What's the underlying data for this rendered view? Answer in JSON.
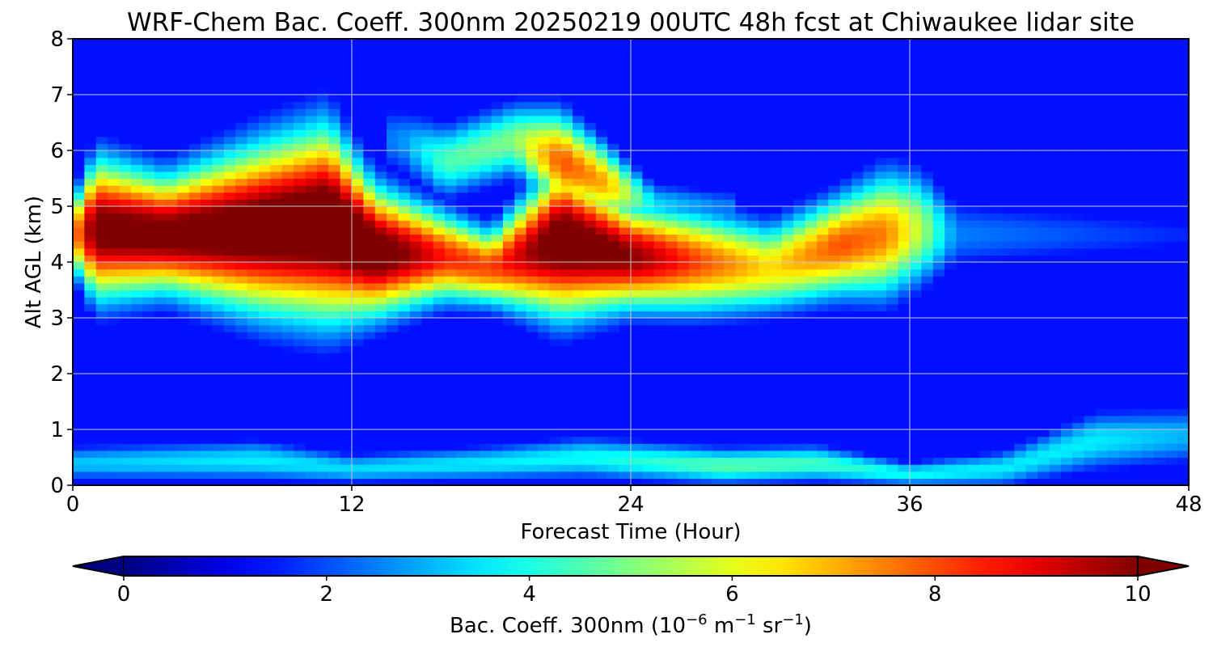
{
  "chart_data": {
    "type": "heatmap",
    "title": "WRF-Chem Bac. Coeff. 300nm  20250219 00UTC 48h fcst at Chiwaukee lidar site",
    "xlabel": "Forecast Time (Hour)",
    "ylabel": "Alt AGL (km)",
    "xlim": [
      0,
      48
    ],
    "ylim": [
      0,
      8
    ],
    "x_ticks": [
      "0",
      "12",
      "24",
      "36",
      "48"
    ],
    "y_ticks": [
      "0",
      "1",
      "2",
      "3",
      "4",
      "5",
      "6",
      "7",
      "8"
    ],
    "grid": true,
    "colormap": "jet",
    "colorbar": {
      "orientation": "horizontal",
      "placement": "bottom",
      "range": [
        0,
        10
      ],
      "extend": "both",
      "ticks": [
        "0",
        "2",
        "4",
        "6",
        "8",
        "10"
      ],
      "label_main": "Bac. Coeff. 300nm  (10",
      "label_exp1": "−6",
      "label_mid": " m",
      "label_exp2": "−1",
      "label_mid2": " sr",
      "label_exp3": "−1",
      "label_end": ")"
    },
    "grid_resolution": {
      "dx_hours": 2,
      "dz_km": 0.25
    },
    "layers": [
      {
        "name": "elevated aerosol layer",
        "points": [
          {
            "x": 0,
            "center_km": 4.5,
            "half_thickness_km": 0.6,
            "peak": 7.0
          },
          {
            "x": 1,
            "center_km": 4.6,
            "half_thickness_km": 1.1,
            "peak": 10.5
          },
          {
            "x": 4,
            "center_km": 4.5,
            "half_thickness_km": 0.9,
            "peak": 10.5
          },
          {
            "x": 8,
            "center_km": 4.6,
            "half_thickness_km": 1.3,
            "peak": 11.0
          },
          {
            "x": 11,
            "center_km": 4.7,
            "half_thickness_km": 1.5,
            "peak": 11.5
          },
          {
            "x": 13,
            "center_km": 4.2,
            "half_thickness_km": 1.0,
            "peak": 11.0
          },
          {
            "x": 16,
            "center_km": 4.1,
            "half_thickness_km": 0.7,
            "peak": 8.5
          },
          {
            "x": 18,
            "center_km": 3.9,
            "half_thickness_km": 0.6,
            "peak": 8.0
          },
          {
            "x": 21,
            "center_km": 4.4,
            "half_thickness_km": 1.2,
            "peak": 11.0
          },
          {
            "x": 24,
            "center_km": 4.1,
            "half_thickness_km": 0.8,
            "peak": 10.0
          },
          {
            "x": 27,
            "center_km": 4.0,
            "half_thickness_km": 0.8,
            "peak": 8.0
          },
          {
            "x": 30,
            "center_km": 3.9,
            "half_thickness_km": 0.7,
            "peak": 6.5
          },
          {
            "x": 33,
            "center_km": 4.3,
            "half_thickness_km": 0.8,
            "peak": 8.0
          },
          {
            "x": 35,
            "center_km": 4.5,
            "half_thickness_km": 1.0,
            "peak": 7.5
          },
          {
            "x": 36.5,
            "center_km": 4.6,
            "half_thickness_km": 0.9,
            "peak": 5.5
          },
          {
            "x": 38,
            "center_km": 4.5,
            "half_thickness_km": 0.6,
            "peak": 2.5
          },
          {
            "x": 48,
            "center_km": 4.5,
            "half_thickness_km": 0.4,
            "peak": 1.6
          }
        ]
      },
      {
        "name": "upper plumes",
        "points": [
          {
            "x": 14,
            "center_km": 6.2,
            "half_thickness_km": 0.6,
            "peak": 2.5
          },
          {
            "x": 16,
            "center_km": 5.8,
            "half_thickness_km": 0.6,
            "peak": 4.5
          },
          {
            "x": 19,
            "center_km": 6.2,
            "half_thickness_km": 0.6,
            "peak": 5.0
          },
          {
            "x": 21,
            "center_km": 5.8,
            "half_thickness_km": 0.8,
            "peak": 8.0
          },
          {
            "x": 23,
            "center_km": 5.4,
            "half_thickness_km": 0.6,
            "peak": 7.0
          },
          {
            "x": 25,
            "center_km": 5.0,
            "half_thickness_km": 0.4,
            "peak": 3.5
          },
          {
            "x": 28,
            "center_km": 5.0,
            "half_thickness_km": 0.3,
            "peak": 2.5
          }
        ]
      },
      {
        "name": "boundary layer",
        "points": [
          {
            "x": 0,
            "center_km": 0.4,
            "half_thickness_km": 0.3,
            "peak": 3.2
          },
          {
            "x": 8,
            "center_km": 0.45,
            "half_thickness_km": 0.35,
            "peak": 3.6
          },
          {
            "x": 12,
            "center_km": 0.3,
            "half_thickness_km": 0.25,
            "peak": 3.4
          },
          {
            "x": 18,
            "center_km": 0.4,
            "half_thickness_km": 0.3,
            "peak": 3.6
          },
          {
            "x": 22,
            "center_km": 0.5,
            "half_thickness_km": 0.35,
            "peak": 3.8
          },
          {
            "x": 28,
            "center_km": 0.35,
            "half_thickness_km": 0.3,
            "peak": 4.6
          },
          {
            "x": 32,
            "center_km": 0.4,
            "half_thickness_km": 0.3,
            "peak": 4.4
          },
          {
            "x": 36,
            "center_km": 0.2,
            "half_thickness_km": 0.2,
            "peak": 3.8
          },
          {
            "x": 40,
            "center_km": 0.3,
            "half_thickness_km": 0.3,
            "peak": 3.6
          },
          {
            "x": 44,
            "center_km": 0.8,
            "half_thickness_km": 0.5,
            "peak": 3.6
          },
          {
            "x": 48,
            "center_km": 0.9,
            "half_thickness_km": 0.5,
            "peak": 3.0
          }
        ]
      }
    ],
    "background_level": 1.4
  }
}
